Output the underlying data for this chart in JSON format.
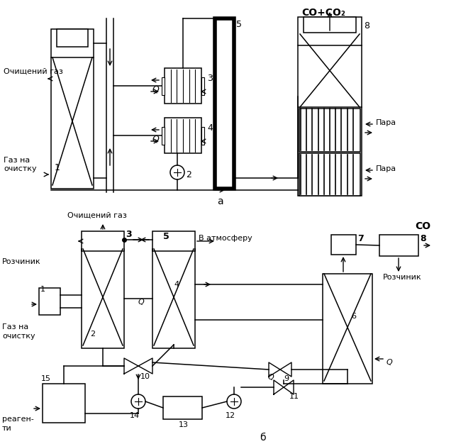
{
  "bg_color": "#ffffff",
  "line_color": "#000000",
  "top": {
    "title": "а",
    "co_co2": "CO+CO₂",
    "ochischen": "Очищений газ",
    "gaz_na": "Газ на",
    "ochistku": "очистку",
    "para1": "Пара",
    "para2": "Пара",
    "Q1": "Q",
    "Q2": "Q"
  },
  "bot": {
    "title": "б",
    "ochischen": "Очищений газ",
    "rozchinyk1": "Розчиник",
    "rozchinyk2": "Розчиник",
    "gaz_na": "Газ на",
    "ochistku": "очистку",
    "v_atm": "В атмосферу",
    "reagenty1": "реаген-",
    "reagenty2": "ти",
    "co": "CO",
    "Q": "Q"
  }
}
